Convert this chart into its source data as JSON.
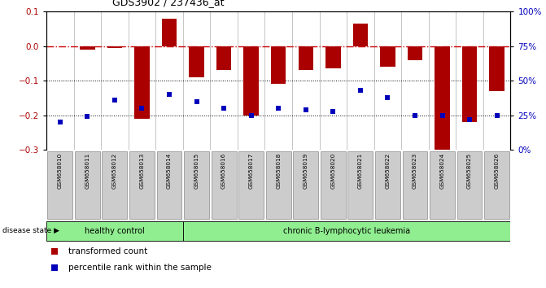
{
  "title": "GDS3902 / 237436_at",
  "samples": [
    "GSM658010",
    "GSM658011",
    "GSM658012",
    "GSM658013",
    "GSM658014",
    "GSM658015",
    "GSM658016",
    "GSM658017",
    "GSM658018",
    "GSM658019",
    "GSM658020",
    "GSM658021",
    "GSM658022",
    "GSM658023",
    "GSM658024",
    "GSM658025",
    "GSM658026"
  ],
  "transformed_count": [
    0.0,
    -0.01,
    -0.005,
    -0.21,
    0.08,
    -0.09,
    -0.07,
    -0.2,
    -0.11,
    -0.07,
    -0.065,
    0.065,
    -0.06,
    -0.04,
    -0.31,
    -0.22,
    -0.13
  ],
  "percentile_rank": [
    20,
    24,
    36,
    30,
    40,
    35,
    30,
    25,
    30,
    29,
    28,
    43,
    38,
    25,
    25,
    22,
    25
  ],
  "healthy_control_count": 5,
  "bar_color": "#aa0000",
  "dot_color": "#0000bb",
  "dashed_line_color": "#cc0000",
  "left_ylim": [
    -0.3,
    0.1
  ],
  "right_ylim": [
    0,
    100
  ],
  "left_yticks": [
    -0.3,
    -0.2,
    -0.1,
    0.0,
    0.1
  ],
  "right_yticks": [
    0,
    25,
    50,
    75,
    100
  ],
  "right_yticklabels": [
    "0%",
    "25%",
    "50%",
    "75%",
    "100%"
  ],
  "healthy_label": "healthy control",
  "leukemia_label": "chronic B-lymphocytic leukemia",
  "disease_state_label": "disease state",
  "legend_bar_label": "transformed count",
  "legend_dot_label": "percentile rank within the sample",
  "healthy_color": "#90ee90",
  "leukemia_color": "#90ee90",
  "sample_bg": "#cccccc"
}
